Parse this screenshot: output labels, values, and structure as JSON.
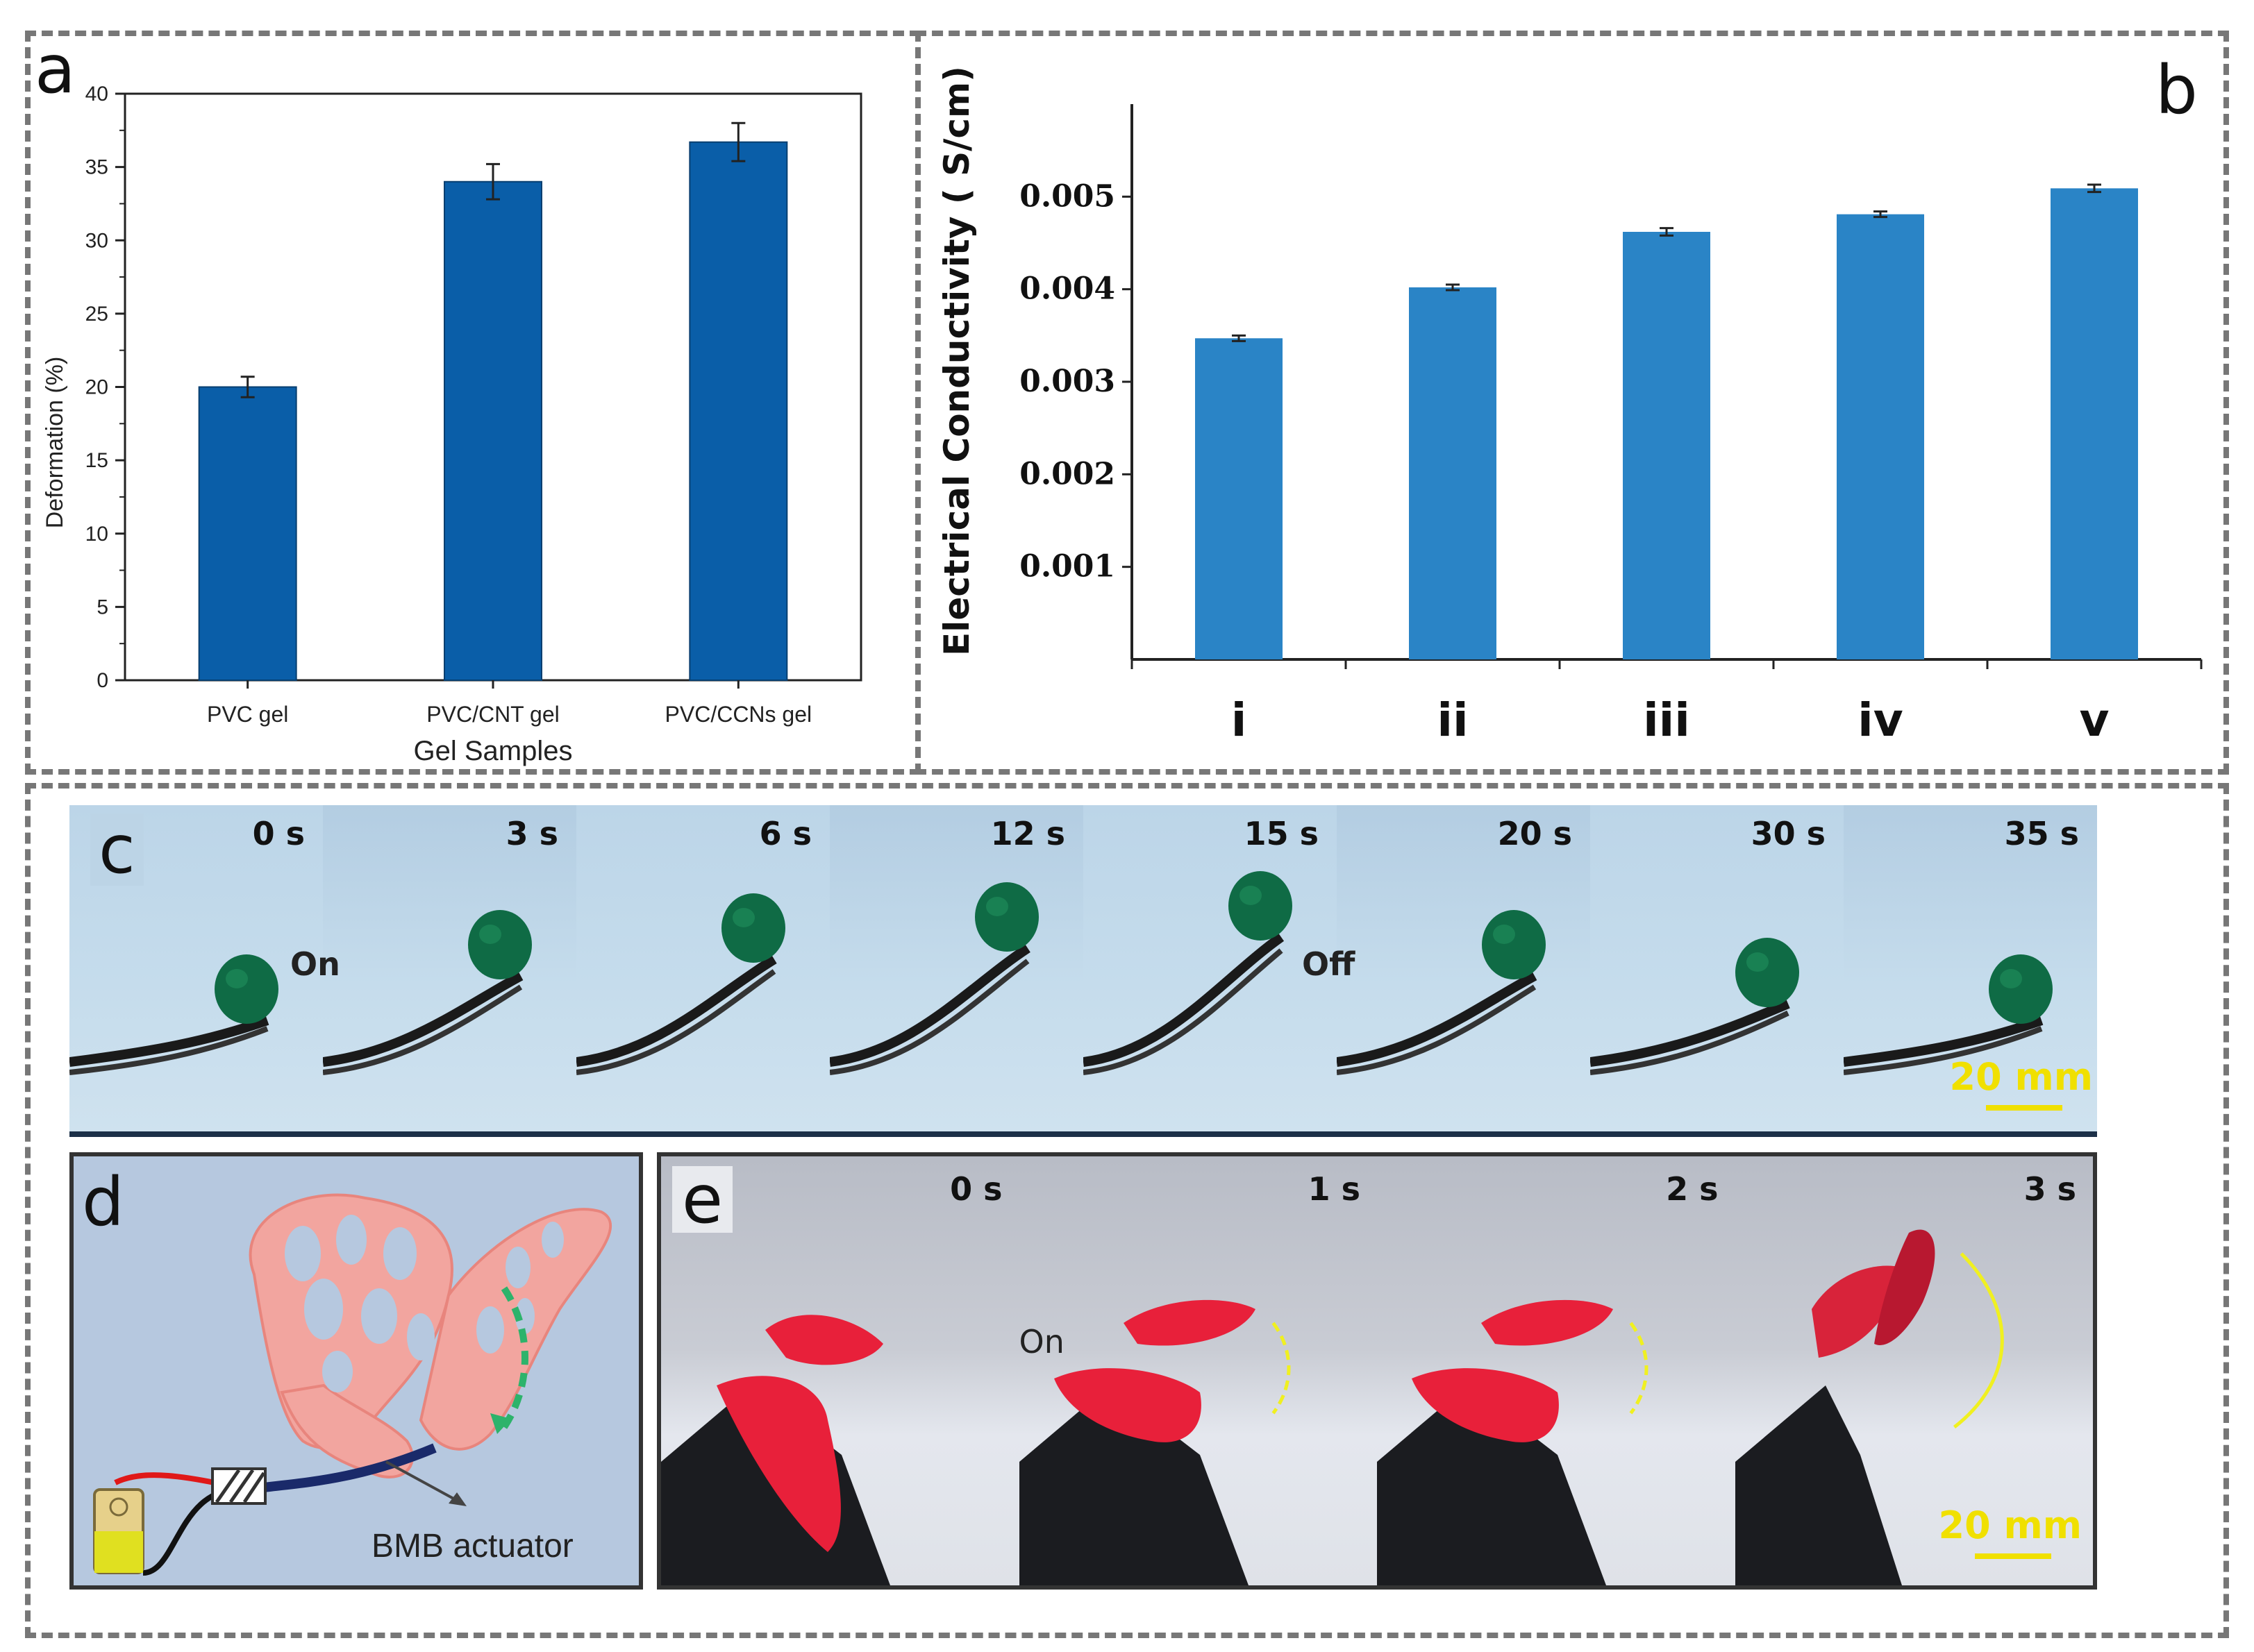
{
  "panels": {
    "a": "a",
    "b": "b",
    "c": "c",
    "d": "d",
    "e": "e"
  },
  "chart_data": [
    {
      "type": "bar",
      "panel": "a",
      "categories": [
        "PVC gel",
        "PVC/CNT gel",
        "PVC/CCNs gel"
      ],
      "values": [
        20.0,
        34.0,
        36.7
      ],
      "errors": [
        0.7,
        1.2,
        1.3
      ],
      "xlabel": "Gel Samples",
      "ylabel": "Deformation (%)",
      "ylim": [
        0,
        40
      ],
      "yticks": [
        0,
        5,
        10,
        15,
        20,
        25,
        30,
        35,
        40
      ],
      "color": "#0a5ea8",
      "grid": false
    },
    {
      "type": "bar",
      "panel": "b",
      "categories": [
        "i",
        "ii",
        "iii",
        "iv",
        "v"
      ],
      "values": [
        0.00347,
        0.00402,
        0.00462,
        0.00481,
        0.00509
      ],
      "errors": [
        3e-05,
        3e-05,
        4e-05,
        3e-05,
        4e-05
      ],
      "xlabel": "",
      "ylabel": "Electrical Conductivity ( S/cm)",
      "ylim": [
        0,
        0.006
      ],
      "yticks": [
        "0.001",
        "0.002",
        "0.003",
        "0.004",
        "0.005"
      ],
      "color": "#2a84c6",
      "grid": false
    }
  ],
  "panel_c": {
    "times": [
      "0 s",
      "3 s",
      "6 s",
      "12 s",
      "15 s",
      "20 s",
      "30 s",
      "35 s"
    ],
    "on_label": "On",
    "off_label": "Off",
    "scalebar": "20 mm"
  },
  "panel_d": {
    "label": "BMB actuator"
  },
  "panel_e": {
    "times": [
      "0 s",
      "1 s",
      "2 s",
      "3 s"
    ],
    "on_label": "On",
    "scalebar": "20 mm"
  }
}
